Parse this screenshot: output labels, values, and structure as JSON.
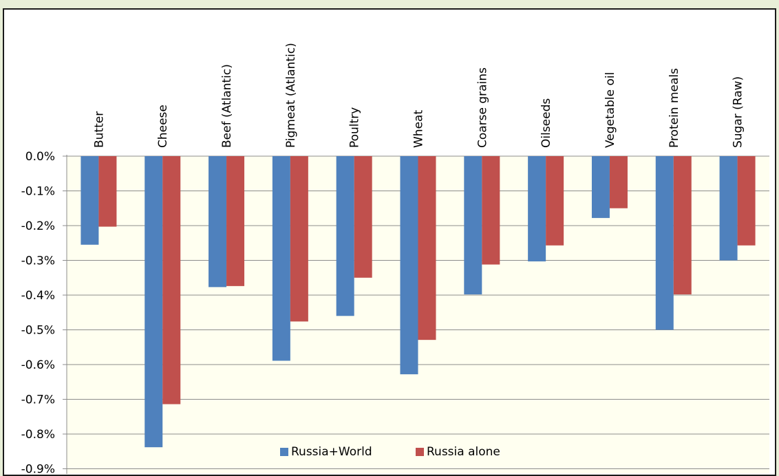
{
  "chart_data": {
    "type": "bar",
    "title": "",
    "xlabel": "",
    "ylabel": "",
    "categories": [
      "Butter",
      "Cheese",
      "Beef (Atlantic)",
      "Pigmeat (Atlantic)",
      "Poultry",
      "Wheat",
      "Coarse grains",
      "Oilseeds",
      "Vegetable oil",
      "Protein meals",
      "Sugar (Raw)"
    ],
    "series": [
      {
        "name": "Russia+World",
        "color": "#4f81bd",
        "values": [
          -0.255,
          -0.838,
          -0.377,
          -0.589,
          -0.46,
          -0.628,
          -0.398,
          -0.303,
          -0.178,
          -0.5,
          -0.3
        ]
      },
      {
        "name": "Russia alone",
        "color": "#c0504d",
        "values": [
          -0.203,
          -0.714,
          -0.374,
          -0.476,
          -0.35,
          -0.529,
          -0.312,
          -0.257,
          -0.15,
          -0.398,
          -0.257
        ]
      }
    ],
    "ylim": [
      -0.9,
      0.0
    ],
    "yticks": [
      "0.0%",
      "-0.1%",
      "-0.2%",
      "-0.3%",
      "-0.4%",
      "-0.5%",
      "-0.6%",
      "-0.7%",
      "-0.8%",
      "-0.9%"
    ],
    "grid": true,
    "legend_position": "bottom-center",
    "plot_background": "#fffff0"
  }
}
